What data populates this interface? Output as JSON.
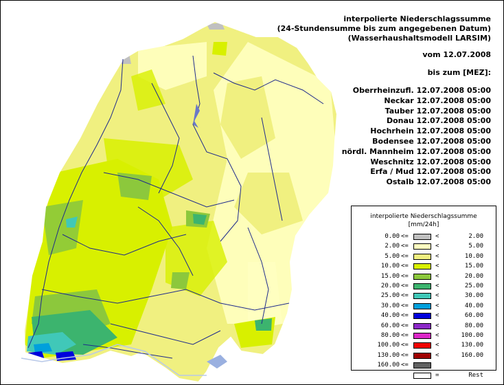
{
  "header": {
    "title_lines": [
      "interpolierte Niederschlagssumme",
      "(24-Stundensumme bis zum angegebenen Datum)",
      "(Wasserhaushaltsmodell LARSIM)"
    ],
    "date_line": "vom 12.07.2008",
    "until_label": "bis zum [MEZ]:"
  },
  "gauges": [
    {
      "name": "Oberrheinzufl.",
      "datetime": "12.07.2008 05:00"
    },
    {
      "name": "Neckar",
      "datetime": "12.07.2008 05:00"
    },
    {
      "name": "Tauber",
      "datetime": "12.07.2008 05:00"
    },
    {
      "name": "Donau",
      "datetime": "12.07.2008 05:00"
    },
    {
      "name": "Hochrhein",
      "datetime": "12.07.2008 05:00"
    },
    {
      "name": "Bodensee",
      "datetime": "12.07.2008 05:00"
    },
    {
      "name": "nördl. Mannheim",
      "datetime": "12.07.2008 05:00"
    },
    {
      "name": "Weschnitz",
      "datetime": "12.07.2008 05:00"
    },
    {
      "name": "Erfa / Mud",
      "datetime": "12.07.2008 05:00"
    },
    {
      "name": "Ostalb",
      "datetime": "12.07.2008 05:00"
    }
  ],
  "legend": {
    "title": "interpolierte Niederschlagssumme",
    "unit": "[mm/24h]",
    "classes": [
      {
        "from": "0.00",
        "le": "<=",
        "lt": "<",
        "to": "2.00",
        "color": "#c0c0c0"
      },
      {
        "from": "2.00",
        "le": "<=",
        "lt": "<",
        "to": "5.00",
        "color": "#ffffc0"
      },
      {
        "from": "5.00",
        "le": "<=",
        "lt": "<",
        "to": "10.00",
        "color": "#f0f080"
      },
      {
        "from": "10.00",
        "le": "<=",
        "lt": "<",
        "to": "15.00",
        "color": "#d8f000"
      },
      {
        "from": "15.00",
        "le": "<=",
        "lt": "<",
        "to": "20.00",
        "color": "#8cc83c"
      },
      {
        "from": "20.00",
        "le": "<=",
        "lt": "<",
        "to": "25.00",
        "color": "#3cb46e"
      },
      {
        "from": "25.00",
        "le": "<=",
        "lt": "<",
        "to": "30.00",
        "color": "#40c8b8"
      },
      {
        "from": "30.00",
        "le": "<=",
        "lt": "<",
        "to": "40.00",
        "color": "#00a0dc"
      },
      {
        "from": "40.00",
        "le": "<=",
        "lt": "<",
        "to": "60.00",
        "color": "#0000dc"
      },
      {
        "from": "60.00",
        "le": "<=",
        "lt": "<",
        "to": "80.00",
        "color": "#8c28c8"
      },
      {
        "from": "80.00",
        "le": "<=",
        "lt": "<",
        "to": "100.00",
        "color": "#dc28c8"
      },
      {
        "from": "100.00",
        "le": "<=",
        "lt": "<",
        "to": "130.00",
        "color": "#f00000"
      },
      {
        "from": "130.00",
        "le": "<=",
        "lt": "<",
        "to": "160.00",
        "color": "#a00000"
      },
      {
        "from": "160.00",
        "le": "<=",
        "lt": "",
        "to": "",
        "color": "#606060"
      },
      {
        "from": "",
        "le": "",
        "lt": "=",
        "to": "Rest",
        "color": "#ffffff"
      }
    ]
  }
}
